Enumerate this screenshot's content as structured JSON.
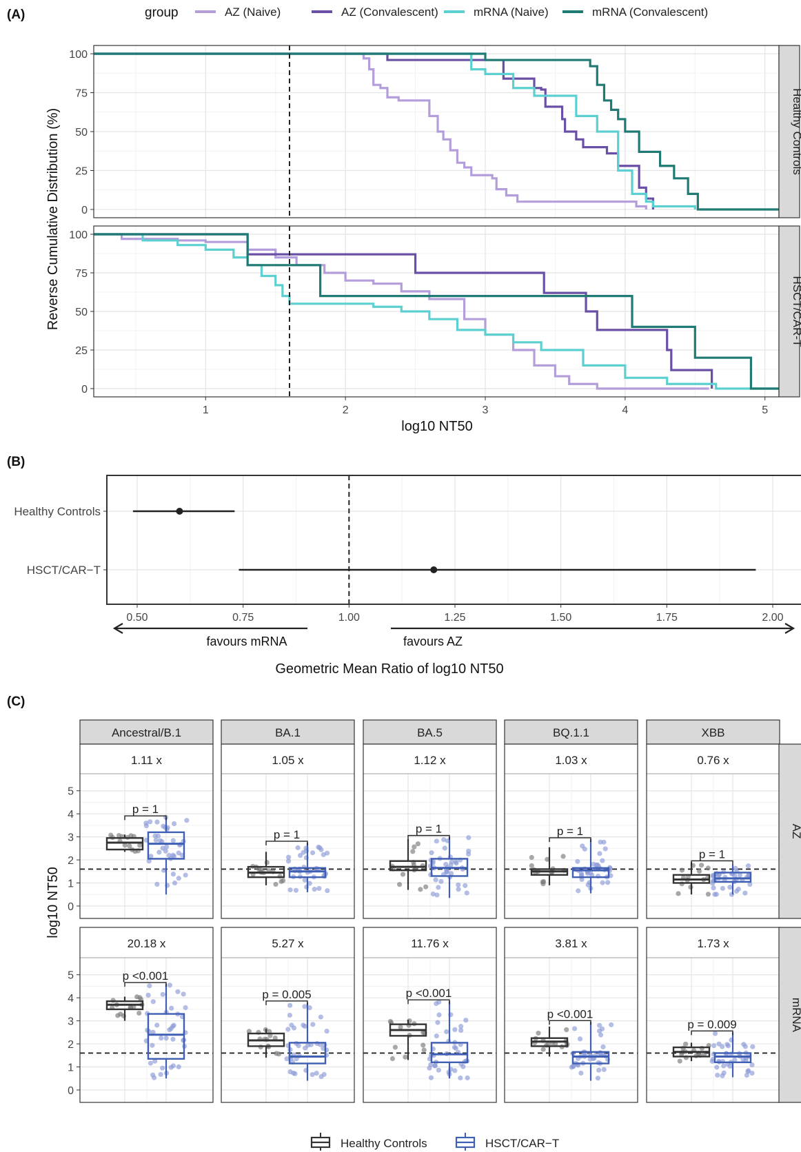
{
  "panel_labels": {
    "a": "(A)",
    "b": "(B)",
    "c": "(C)"
  },
  "colors": {
    "az_naive": "#b39ddb",
    "az_convalescent": "#6a4fa6",
    "mrna_naive": "#5ccfd0",
    "mrna_convalescent": "#1f7a73",
    "healthy": "#333333",
    "hsct": "#3f5fb5",
    "healthy_point": "#7a7a7a",
    "hsct_point": "#8c9ad6"
  },
  "chart_data": [
    {
      "type": "line",
      "panel": "A",
      "legend_title": "group",
      "legend_position": "top",
      "xlabel": "log10 NT50",
      "ylabel": "Reverse Cumulative Distribution (%)",
      "xlim": [
        0.2,
        5.1
      ],
      "ylim": [
        0,
        100
      ],
      "x_ticks": [
        "1",
        "2",
        "3",
        "4",
        "5"
      ],
      "y_ticks": [
        "0",
        "25",
        "50",
        "75",
        "100"
      ],
      "reference_line_x": 1.6,
      "facets": [
        {
          "name": "Healthy Controls",
          "series": [
            {
              "name": "AZ (Naive)",
              "color_key": "az_naive",
              "x": [
                0.2,
                2.13,
                2.17,
                2.2,
                2.25,
                2.3,
                2.38,
                2.6,
                2.66,
                2.7,
                2.75,
                2.8,
                2.85,
                2.9,
                3.05,
                3.08,
                3.15,
                3.23,
                4.05,
                4.08,
                4.15
              ],
              "y": [
                100,
                97,
                90,
                80,
                78,
                72,
                70,
                60,
                50,
                45,
                38,
                30,
                27,
                22,
                20,
                13,
                9,
                5,
                5,
                2,
                0
              ]
            },
            {
              "name": "AZ (Convalescent)",
              "color_key": "az_convalescent",
              "x": [
                0.2,
                2.15,
                2.3,
                2.85,
                3.13,
                3.3,
                3.35,
                3.4,
                3.43,
                3.55,
                3.57,
                3.65,
                3.7,
                3.85,
                3.87,
                3.95,
                4.1,
                4.15,
                4.2
              ],
              "y": [
                100,
                100,
                96,
                96,
                84,
                84,
                78,
                77,
                66,
                58,
                50,
                45,
                40,
                40,
                36,
                28,
                14,
                7,
                0
              ]
            },
            {
              "name": "mRNA (Naive)",
              "color_key": "mrna_naive",
              "x": [
                0.2,
                2.85,
                2.9,
                3.0,
                3.2,
                3.35,
                3.55,
                3.65,
                3.75,
                3.8,
                3.95,
                4.05,
                4.15,
                4.2,
                4.5
              ],
              "y": [
                100,
                100,
                90,
                87,
                78,
                73,
                73,
                60,
                60,
                50,
                25,
                10,
                5,
                2,
                0
              ]
            },
            {
              "name": "mRNA (Convalescent)",
              "color_key": "mrna_convalescent",
              "x": [
                0.2,
                2.9,
                3.0,
                3.35,
                3.75,
                3.8,
                3.85,
                3.9,
                3.95,
                4.0,
                4.1,
                4.15,
                4.25,
                4.35,
                4.45,
                4.52,
                5.1
              ],
              "y": [
                100,
                100,
                96,
                96,
                92,
                80,
                70,
                64,
                58,
                50,
                37,
                37,
                28,
                20,
                10,
                0,
                0
              ]
            }
          ]
        },
        {
          "name": "HSCT/CAR-T",
          "series": [
            {
              "name": "AZ (Naive)",
              "color_key": "az_naive",
              "x": [
                0.2,
                0.4,
                0.8,
                1.0,
                1.3,
                1.5,
                1.65,
                1.85,
                2.0,
                2.2,
                2.4,
                2.6,
                2.85,
                3.0,
                3.2,
                3.35,
                3.5,
                3.6,
                3.8,
                4.6
              ],
              "y": [
                100,
                97,
                96,
                95,
                90,
                85,
                80,
                75,
                70,
                68,
                63,
                58,
                45,
                35,
                25,
                15,
                8,
                3,
                0,
                0
              ]
            },
            {
              "name": "AZ (Convalescent)",
              "color_key": "az_convalescent",
              "x": [
                0.2,
                1.28,
                1.3,
                2.45,
                2.5,
                3.4,
                3.42,
                3.68,
                3.72,
                3.8,
                4.27,
                4.3,
                4.33,
                4.62
              ],
              "y": [
                100,
                100,
                87,
                87,
                75,
                75,
                62,
                62,
                50,
                38,
                38,
                25,
                12,
                0
              ]
            },
            {
              "name": "mRNA (Naive)",
              "color_key": "mrna_naive",
              "x": [
                0.2,
                0.55,
                0.8,
                1.0,
                1.2,
                1.3,
                1.4,
                1.5,
                1.55,
                1.6,
                1.9,
                2.2,
                2.4,
                2.6,
                2.8,
                3.0,
                3.2,
                3.4,
                3.7,
                4.0,
                4.3,
                4.65,
                5.1
              ],
              "y": [
                100,
                96,
                93,
                90,
                85,
                80,
                73,
                67,
                60,
                55,
                55,
                53,
                50,
                45,
                38,
                35,
                30,
                25,
                15,
                7,
                3,
                0,
                0
              ]
            },
            {
              "name": "mRNA (Convalescent)",
              "color_key": "mrna_convalescent",
              "x": [
                0.2,
                1.27,
                1.3,
                1.8,
                1.82,
                4.02,
                4.05,
                4.25,
                4.5,
                4.88,
                4.9,
                5.1
              ],
              "y": [
                100,
                100,
                80,
                80,
                60,
                60,
                40,
                40,
                20,
                20,
                0,
                0
              ]
            }
          ]
        }
      ]
    },
    {
      "type": "scatter",
      "panel": "B",
      "xlabel": "Geometric Mean Ratio of log10 NT50",
      "xlim": [
        0.43,
        2.07
      ],
      "x_ticks": [
        "0.50",
        "0.75",
        "1.00",
        "1.25",
        "1.50",
        "1.75",
        "2.00"
      ],
      "reference_line_x": 1.0,
      "annotations": {
        "left": "favours mRNA",
        "right": "favours AZ"
      },
      "rows": [
        {
          "label": "Healthy Controls",
          "estimate": 0.6,
          "lower": 0.49,
          "upper": 0.73
        },
        {
          "label": "HSCT/CAR−T",
          "estimate": 1.2,
          "lower": 0.74,
          "upper": 1.96
        }
      ]
    },
    {
      "type": "box",
      "panel": "C",
      "ylabel": "log10 NT50",
      "ylim": [
        -0.3,
        5.5
      ],
      "y_ticks": [
        "0",
        "1",
        "2",
        "3",
        "4",
        "5"
      ],
      "reference_line_y": 1.6,
      "legend_position": "bottom",
      "groups": [
        "Healthy Controls",
        "HSCT/CAR−T"
      ],
      "columns": [
        "Ancestral/B.1",
        "BA.1",
        "BA.5",
        "BQ.1.1",
        "XBB"
      ],
      "rows": [
        "AZ",
        "mRNA"
      ],
      "cells": [
        [
          {
            "ratio": "1.11 x",
            "p": "p = 1",
            "boxes": [
              {
                "q1": 2.45,
                "median": 2.75,
                "q3": 2.95,
                "lo": 2.35,
                "hi": 3.1
              },
              {
                "q1": 2.05,
                "median": 2.7,
                "q3": 3.2,
                "lo": 0.5,
                "hi": 3.85
              }
            ]
          },
          {
            "ratio": "1.05 x",
            "p": "p = 1",
            "boxes": [
              {
                "q1": 1.25,
                "median": 1.45,
                "q3": 1.7,
                "lo": 0.9,
                "hi": 2.35
              },
              {
                "q1": 1.25,
                "median": 1.5,
                "q3": 1.65,
                "lo": 0.6,
                "hi": 2.75
              }
            ]
          },
          {
            "ratio": "1.12 x",
            "p": "p = 1",
            "boxes": [
              {
                "q1": 1.55,
                "median": 1.7,
                "q3": 1.95,
                "lo": 0.7,
                "hi": 2.9
              },
              {
                "q1": 1.3,
                "median": 1.65,
                "q3": 2.05,
                "lo": 0.35,
                "hi": 3.0
              }
            ]
          },
          {
            "ratio": "1.03 x",
            "p": "p = 1",
            "boxes": [
              {
                "q1": 1.35,
                "median": 1.5,
                "q3": 1.6,
                "lo": 0.9,
                "hi": 2.55
              },
              {
                "q1": 1.25,
                "median": 1.55,
                "q3": 1.65,
                "lo": 0.55,
                "hi": 2.9
              }
            ]
          },
          {
            "ratio": "0.76 x",
            "p": "p = 1",
            "boxes": [
              {
                "q1": 1.0,
                "median": 1.15,
                "q3": 1.35,
                "lo": 0.5,
                "hi": 1.9
              },
              {
                "q1": 1.05,
                "median": 1.2,
                "q3": 1.45,
                "lo": 0.5,
                "hi": 1.8
              }
            ]
          }
        ],
        [
          {
            "ratio": "20.18 x",
            "p": "p <0.001",
            "boxes": [
              {
                "q1": 3.5,
                "median": 3.7,
                "q3": 3.85,
                "lo": 3.0,
                "hi": 4.05
              },
              {
                "q1": 1.35,
                "median": 2.4,
                "q3": 3.3,
                "lo": 0.5,
                "hi": 4.6
              }
            ]
          },
          {
            "ratio": "5.27 x",
            "p": "p = 0.005",
            "boxes": [
              {
                "q1": 1.9,
                "median": 2.15,
                "q3": 2.45,
                "lo": 1.4,
                "hi": 2.65
              },
              {
                "q1": 1.15,
                "median": 1.45,
                "q3": 2.05,
                "lo": 0.4,
                "hi": 3.8
              }
            ]
          },
          {
            "ratio": "11.76 x",
            "p": "p <0.001",
            "boxes": [
              {
                "q1": 2.35,
                "median": 2.6,
                "q3": 2.85,
                "lo": 1.3,
                "hi": 3.05
              },
              {
                "q1": 1.2,
                "median": 1.55,
                "q3": 2.05,
                "lo": 0.5,
                "hi": 3.85
              }
            ]
          },
          {
            "ratio": "3.81 x",
            "p": "p <0.001",
            "boxes": [
              {
                "q1": 1.9,
                "median": 2.1,
                "q3": 2.25,
                "lo": 1.45,
                "hi": 2.75
              },
              {
                "q1": 1.15,
                "median": 1.45,
                "q3": 1.65,
                "lo": 0.4,
                "hi": 2.95
              }
            ]
          },
          {
            "ratio": "1.73 x",
            "p": "p = 0.009",
            "boxes": [
              {
                "q1": 1.45,
                "median": 1.65,
                "q3": 1.85,
                "lo": 1.25,
                "hi": 2.05
              },
              {
                "q1": 1.2,
                "median": 1.45,
                "q3": 1.6,
                "lo": 0.55,
                "hi": 2.5
              }
            ]
          }
        ]
      ]
    }
  ]
}
